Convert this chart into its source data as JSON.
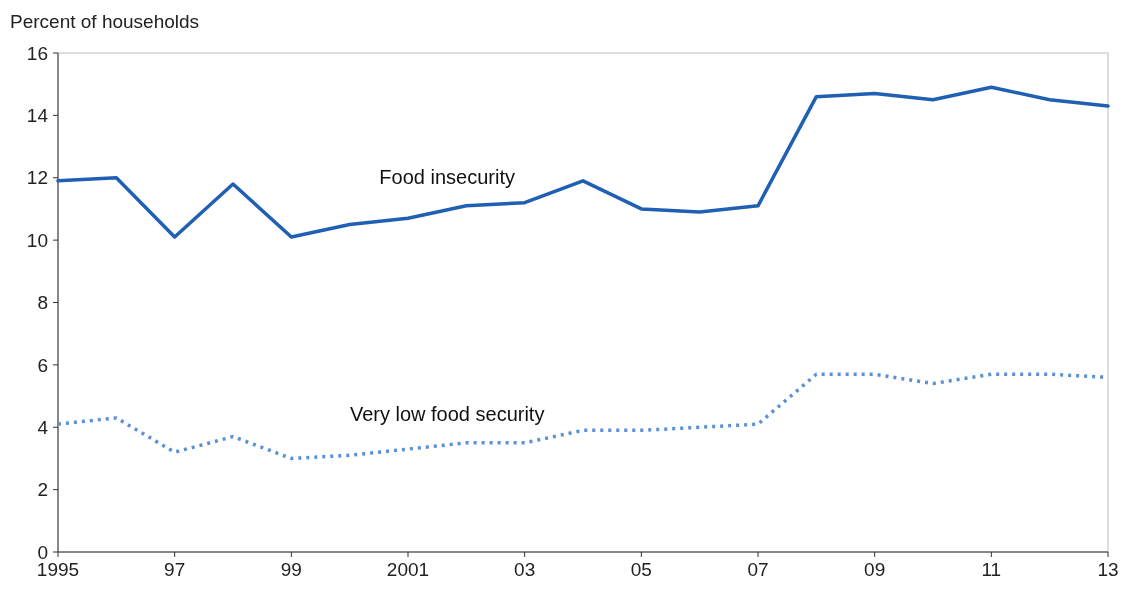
{
  "chart_data": {
    "type": "line",
    "ylabel": "Percent of households",
    "x": [
      1995,
      1996,
      1997,
      1998,
      1999,
      2000,
      2001,
      2002,
      2003,
      2004,
      2005,
      2006,
      2007,
      2008,
      2009,
      2010,
      2011,
      2012,
      2013
    ],
    "series": [
      {
        "name": "Food insecurity",
        "color": "#1f5fb4",
        "line_style": "solid",
        "values": [
          11.9,
          12.0,
          10.1,
          11.8,
          10.1,
          10.5,
          10.7,
          11.1,
          11.2,
          11.9,
          11.0,
          10.9,
          11.1,
          14.6,
          14.7,
          14.5,
          14.9,
          14.5,
          14.3
        ]
      },
      {
        "name": "Very low food security",
        "color": "#5b8fd6",
        "line_style": "dotted",
        "values": [
          4.1,
          4.3,
          3.2,
          3.7,
          3.0,
          3.1,
          3.3,
          3.5,
          3.5,
          3.9,
          3.9,
          4.0,
          4.1,
          5.7,
          5.7,
          5.4,
          5.7,
          5.7,
          5.6
        ]
      }
    ],
    "xlim": [
      1995,
      2013
    ],
    "xticks": [
      {
        "value": 1995,
        "label": "1995"
      },
      {
        "value": 1997,
        "label": "97"
      },
      {
        "value": 1999,
        "label": "99"
      },
      {
        "value": 2001,
        "label": "2001"
      },
      {
        "value": 2003,
        "label": "03"
      },
      {
        "value": 2005,
        "label": "05"
      },
      {
        "value": 2007,
        "label": "07"
      },
      {
        "value": 2009,
        "label": "09"
      },
      {
        "value": 2011,
        "label": "11"
      },
      {
        "value": 2013,
        "label": "13"
      }
    ],
    "ylim": [
      0,
      16
    ],
    "yticks": [
      0,
      2,
      4,
      6,
      8,
      10,
      12,
      14,
      16
    ],
    "grid": false,
    "marker": "none"
  }
}
